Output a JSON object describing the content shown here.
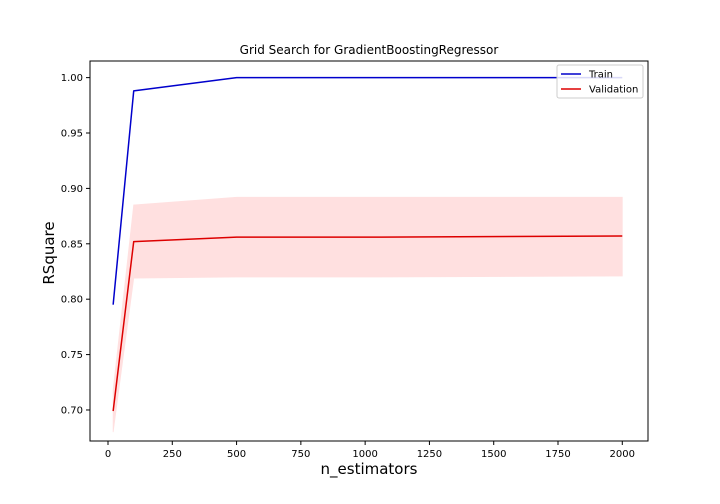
{
  "chart_data": {
    "type": "line",
    "title": "Grid Search for GradientBoostingRegressor",
    "xlabel": "n_estimators",
    "ylabel": "RSquare",
    "xlim": [
      -70,
      2100
    ],
    "ylim": [
      0.672,
      1.015
    ],
    "xticks": [
      0,
      250,
      500,
      750,
      1000,
      1250,
      1500,
      1750,
      2000
    ],
    "yticks": [
      0.7,
      0.75,
      0.8,
      0.85,
      0.9,
      0.95,
      1.0
    ],
    "xtick_labels": [
      "0",
      "250",
      "500",
      "750",
      "1000",
      "1250",
      "1500",
      "1750",
      "2000"
    ],
    "ytick_labels": [
      "0.70",
      "0.75",
      "0.80",
      "0.85",
      "0.90",
      "0.95",
      "1.00"
    ],
    "grid": false,
    "legend_position": "top-right",
    "x": [
      20,
      100,
      500,
      1000,
      2000
    ],
    "series": [
      {
        "name": "Train",
        "color": "#0000cc",
        "values": [
          0.795,
          0.988,
          1.0,
          1.0,
          1.0
        ]
      },
      {
        "name": "Validation",
        "color": "#dd0000",
        "values": [
          0.699,
          0.852,
          0.856,
          0.856,
          0.857
        ],
        "band_lower": [
          0.68,
          0.819,
          0.82,
          0.82,
          0.821
        ],
        "band_upper": [
          0.718,
          0.885,
          0.892,
          0.892,
          0.892
        ],
        "band_color": "#ffe0e0"
      }
    ]
  }
}
